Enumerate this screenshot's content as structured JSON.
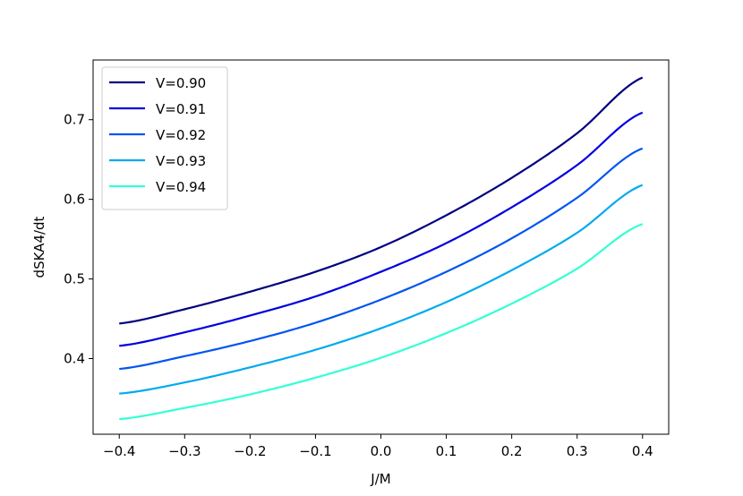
{
  "chart_data": {
    "type": "line",
    "xlabel": "J/M",
    "ylabel": "dSKA4/dt",
    "xlim": [
      -0.44,
      0.44
    ],
    "ylim": [
      0.305,
      0.775
    ],
    "xticks": [
      -0.4,
      -0.3,
      -0.2,
      -0.1,
      0.0,
      0.1,
      0.2,
      0.3,
      0.4
    ],
    "xtick_labels": [
      "−0.4",
      "−0.3",
      "−0.2",
      "−0.1",
      "0.0",
      "0.1",
      "0.2",
      "0.3",
      "0.4"
    ],
    "yticks": [
      0.4,
      0.5,
      0.6,
      0.7
    ],
    "ytick_labels": [
      "0.4",
      "0.5",
      "0.6",
      "0.7"
    ],
    "grid": false,
    "legend_position": "top-left",
    "x": [
      -0.4,
      -0.3,
      -0.2,
      -0.1,
      0.0,
      0.1,
      0.2,
      0.3,
      0.4
    ],
    "series": [
      {
        "name": "V=0.90",
        "color": "#00007f",
        "values": [
          0.444,
          0.462,
          0.484,
          0.509,
          0.54,
          0.58,
          0.627,
          0.683,
          0.753
        ]
      },
      {
        "name": "V=0.91",
        "color": "#0000e0",
        "values": [
          0.416,
          0.433,
          0.454,
          0.478,
          0.509,
          0.545,
          0.59,
          0.643,
          0.709
        ]
      },
      {
        "name": "V=0.92",
        "color": "#0055f0",
        "values": [
          0.387,
          0.403,
          0.422,
          0.445,
          0.474,
          0.509,
          0.551,
          0.602,
          0.664
        ]
      },
      {
        "name": "V=0.93",
        "color": "#00aaee",
        "values": [
          0.356,
          0.37,
          0.389,
          0.411,
          0.438,
          0.471,
          0.511,
          0.558,
          0.618
        ]
      },
      {
        "name": "V=0.94",
        "color": "#33ffd5",
        "values": [
          0.324,
          0.338,
          0.355,
          0.376,
          0.401,
          0.432,
          0.469,
          0.513,
          0.569
        ]
      }
    ]
  }
}
